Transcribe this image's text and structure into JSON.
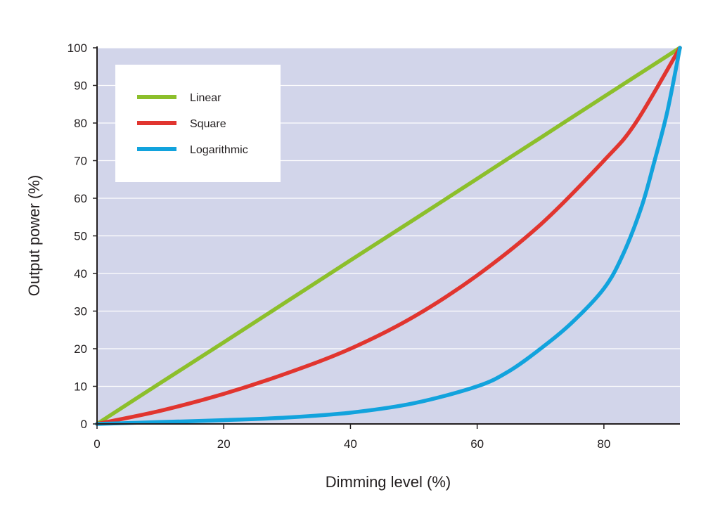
{
  "chart_data": {
    "type": "line",
    "xlabel": "Dimming level (%)",
    "ylabel": "Output power (%)",
    "xlim": [
      0,
      92
    ],
    "ylim": [
      0,
      100
    ],
    "xticks": [
      "0",
      "20",
      "40",
      "60",
      "80"
    ],
    "yticks": [
      "0",
      "10",
      "20",
      "30",
      "40",
      "50",
      "60",
      "70",
      "80",
      "90",
      "100"
    ],
    "grid": "horizontal",
    "legend_position": "top-left",
    "plot_background": "#d2d5ea",
    "series": [
      {
        "name": "Linear",
        "color": "#8cbf2b",
        "x": [
          0,
          10,
          20,
          30,
          40,
          50,
          60,
          70,
          80,
          92
        ],
        "y": [
          0,
          10.9,
          21.7,
          32.6,
          43.5,
          54.3,
          65.2,
          76.1,
          87,
          100
        ]
      },
      {
        "name": "Square",
        "color": "#e1352f",
        "x": [
          0,
          10,
          20,
          30,
          40,
          50,
          60,
          70,
          80,
          85,
          92
        ],
        "y": [
          0,
          3.5,
          8,
          13.5,
          20,
          28.5,
          39.5,
          53,
          70,
          80,
          100
        ]
      },
      {
        "name": "Logarithmic",
        "color": "#12a3dd",
        "x": [
          0,
          10,
          20,
          30,
          40,
          50,
          60,
          65,
          70,
          75,
          80,
          83,
          86,
          88,
          90,
          92
        ],
        "y": [
          0,
          0.5,
          1,
          1.7,
          3,
          5.5,
          10,
          14,
          20,
          27,
          36,
          45,
          58,
          70,
          83,
          100
        ]
      }
    ]
  }
}
